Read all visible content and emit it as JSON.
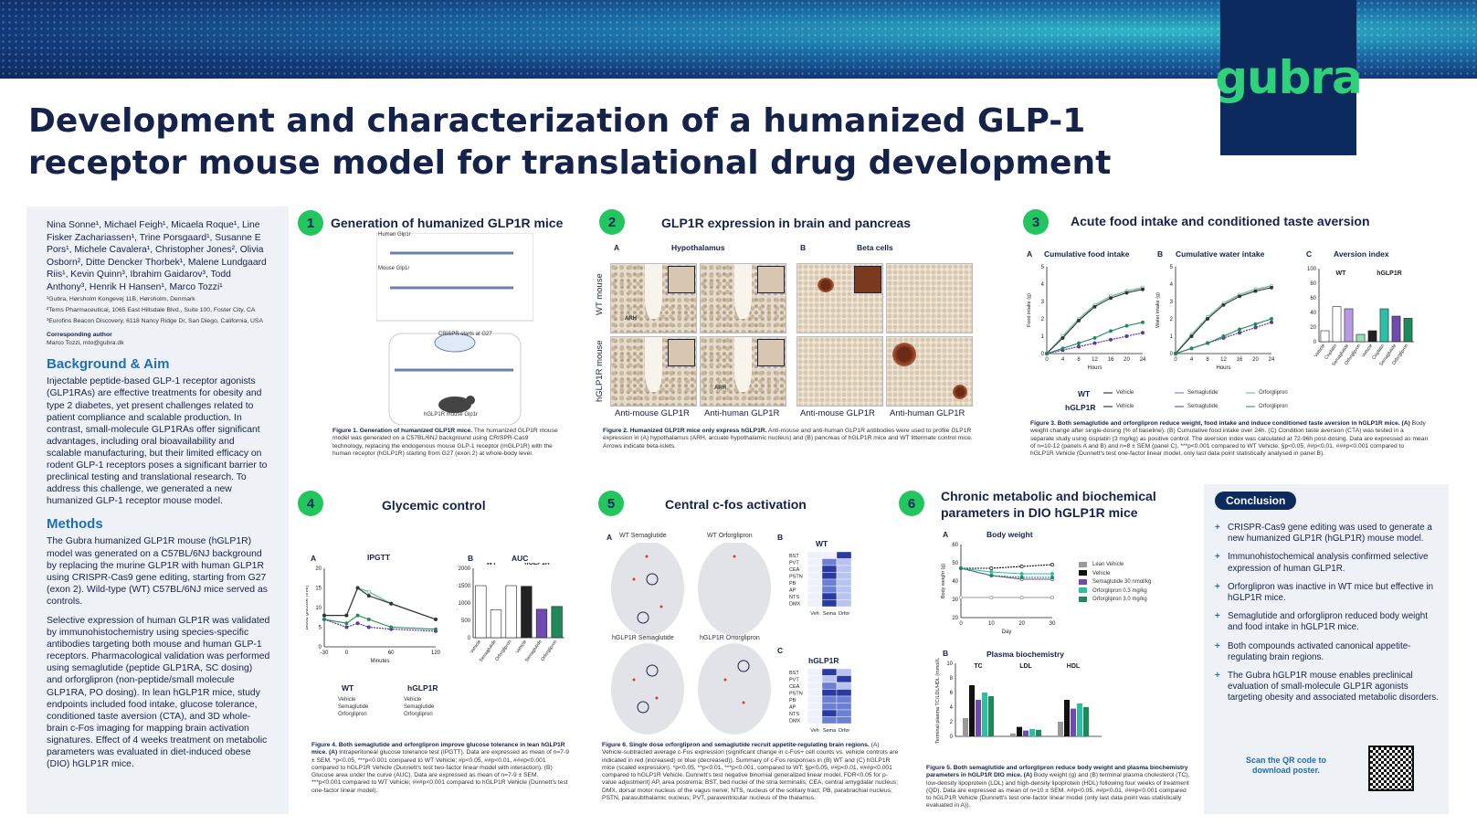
{
  "banner": {
    "logo": "gubra"
  },
  "title": "Development and characterization of a humanized GLP-1 receptor mouse model for translational drug development",
  "left": {
    "authors": "Nina Sonne¹, Michael Feigh¹, Micaela Roque¹, Line Fisker Zachariassen¹, Trine Porsgaard¹, Susanne E Pors¹, Michele Cavalera¹, Christopher Jones², Olivia Osborn², Ditte Dencker Thorbek¹, Malene Lundgaard Riis¹, Kevin Quinn³, Ibrahim Gaidarov³, Todd Anthony³, Henrik H Hansen¹, Marco Tozzi¹",
    "affil1": "¹Gubra, Hørsholm Kongevej 11B, Hørsholm, Denmark",
    "affil2": "²Terns Pharmaceutical, 1065 East Hillsdale Blvd., Suite 100, Foster City, CA",
    "affil3": "³Eurofins Beacon Discovery, 6118 Nancy Ridge Dr, San Diego, California, USA",
    "corr_label": "Corresponding author",
    "corr_value": "Marco Tozzi, mto@gubra.dk",
    "bg_heading": "Background & Aim",
    "bg_text": "Injectable peptide-based GLP-1 receptor agonists (GLP1RAs) are effective treatments for obesity and type 2 diabetes, yet present challenges related to patient compliance and scalable production. In contrast, small-molecule GLP1RAs offer significant advantages, including oral bioavailability and scalable manufacturing, but their limited efficacy on rodent GLP-1 receptors poses a significant barrier to preclinical testing and translational research. To address this challenge, we generated a new humanized GLP-1 receptor mouse model.",
    "methods_heading": "Methods",
    "methods_p1": "The Gubra humanized GLP1R mouse (hGLP1R) model was generated on a C57BL/6NJ background by replacing the murine GLP1R with human GLP1R using CRISPR-Cas9 gene editing, starting from G27 (exon 2). Wild-type (WT) C57BL/6NJ mice served as controls.",
    "methods_p2": "Selective expression of human GLP1R was validated by immunohistochemistry using species-specific antibodies targeting both mouse and human GLP-1 receptors. Pharmacological validation was performed using semaglutide (peptide GLP1RA, SC dosing) and orforglipron (non-peptide/small molecule GLP1RA, PO dosing). In lean hGLP1R mice, study endpoints included food intake, glucose tolerance, conditioned taste aversion (CTA), and 3D whole-brain c-Fos imaging for mapping brain activation signatures. Effect of 4 weeks treatment on metabolic parameters was evaluated in diet-induced obese (DIO) hGLP1R mice."
  },
  "p1": {
    "num": "1",
    "heading": "Generation of humanized GLP1R mice",
    "human": "Human Glp1r",
    "mouse": "Mouse Glp1r",
    "crispr": "CRISPR starts at G27",
    "hmouse": "hGLP1R mouse Glp1r",
    "cap_b": "Figure 1. Generation of humanized GLP1R mice.",
    "cap": " The humanized GLP1R mouse model was generated on a C57BL/6NJ background using CRISPR-Cas9 technology, replacing the endogenous mouse GLP-1 receptor (mGLP1R) with the human receptor (hGLP1R) starting from G27 (exon 2) at whole-body level."
  },
  "p2": {
    "num": "2",
    "heading": "GLP1R expression in brain and pancreas",
    "a": "A",
    "hypo": "Hypothalamus",
    "b": "B",
    "beta": "Beta cells",
    "wt": "WT mouse",
    "hg": "hGLP1R mouse",
    "arh": "ARH",
    "ab1": "Anti-mouse GLP1R",
    "ab2": "Anti-human GLP1R",
    "ab3": "Anti-mouse GLP1R",
    "ab4": "Anti-human GLP1R",
    "cap_b": "Figure 2. Humanized GLP1R mice only express hGLP1R.",
    "cap": " Anti-mouse and anti-human GLP1R antibodies were used to profile GLP1R expression in (A) hypothalamus (ARH, arcuate hypothalamic nucleus) and (B) pancreas of hGLP1R mice and WT littermate control mice. Arrows indicate beta-islets."
  },
  "p3": {
    "num": "3",
    "heading": "Acute food intake and conditioned taste aversion",
    "a": "A",
    "a_t": "Cumulative food intake",
    "b": "B",
    "b_t": "Cumulative water intake",
    "c": "C",
    "c_t": "Aversion index",
    "ya": "Food intake (g)",
    "yb": "Water intake (g)",
    "yc": "Aversion index (water intake/total fluid intake, %)",
    "x": "Hours",
    "wt": "WT",
    "hg": "hGLP1R",
    "veh": "Vehicle",
    "sema": "Semaglutide",
    "orfo": "Orforglipron",
    "cap_b": "Figure 3. Both semaglutide and orforglipron reduce weight, food intake and induce conditioned taste aversion in hGLP1R mice. (A)",
    "cap": " Body weight change after single-dosing (% of baseline). (B) Cumulative food intake over 24h. (C) Condition taste aversion (CTA) was tested in a separate study using cisplatin (3 mg/kg) as positive control. The aversion index was calculated at 72-96h post-dosing. Data are expressed as mean of n=10-12 (panels A and B) and n=8 ± SEM (panel C). ***p<0.001 compared to WT Vehicle; §p<0.05, ##p<0.01, ###p<0.001 compared to hGLP1R Vehicle (Dunnett's test one-factor linear model, only last data point statistically analysed in panel B)."
  },
  "p4": {
    "num": "4",
    "heading": "Glycemic control",
    "a": "A",
    "a_t": "IPGTT",
    "b": "B",
    "b_t": "AUC",
    "y": "Blood glucose (mM)",
    "x": "Minutes",
    "yauc": "AUC (mM x time)",
    "wt": "WT",
    "hg": "hGLP1R",
    "veh": "Vehicle",
    "sema": "Semaglutide",
    "orfo": "Orforglipron",
    "cap_b": "Figure 4. Both semaglutide and orforglipron improve glucose tolerance in lean hGLP1R mice. (A)",
    "cap": " Intraperitoneal glucose tolerance test (IPGTT). Data are expressed as mean of n=7-9 ± SEM. *p<0.05, ***p<0.001 compared to WT Vehicle; #p<0.05, ##p<0.01, ###p<0.001 compared to hGLP1R Vehicle (Dunnett's test two-factor linear model with interaction). (B) Glucose area under the curve (AUC). Data are expressed as mean of n=7-9 ± SEM. ***p<0.001 compared to WT Vehicle; ###p<0.001 compared to hGLP1R Vehicle (Dunnett's test one-factor linear model)."
  },
  "p5": {
    "num": "5",
    "heading": "Central c-fos activation",
    "a": "A",
    "b": "B",
    "c": "C",
    "wt_sema": "WT Semaglutide",
    "wt_orfo": "WT Orforglipron",
    "hg_sema": "hGLP1R Semaglutide",
    "hg_orfo": "hGLP1R Orforglipron",
    "wt": "WT",
    "hg": "hGLP1R",
    "regions": [
      "BST",
      "PVT",
      "CEA",
      "PSTN",
      "PB",
      "AP",
      "NTS",
      "DMX"
    ],
    "cols": [
      "Veh",
      "Sema",
      "Orfor"
    ],
    "cap_b": "Figure 6. Single dose orforglipron and semaglutide recruit appetite-regulating brain regions.",
    "cap": " (A) Vehicle-subtracted average c-Fos expression (significant change in c-Fos+ cell counts vs. vehicle controls are indicated in red (increased) or blue (decreased)). Summary of c-Fos responses in (B) WT and (C) hGLP1R mice (scaled expression). *p<0.05, **p<0.01, ***p<0.001, compared to WT; §p<0.05, ##p<0.01, ###p<0.001 compared to hGLP1R Vehicle. Dunnett's test negative binomial generalized linear model, FDR<0.05 for p-value adjustment) AP, area postrema; BST, bed nuclei of the stria terminalis; CEA, central amygdalar nucleus; DMX, dorsal motor nucleus of the vagus nerve; NTS, nucleus of the solitary tract; PB, parabrachial nucleus; PSTN, parasubthalamic nucleus; PVT, paraventricular nucleus of the thalamus."
  },
  "p6": {
    "num": "6",
    "heading1": "Chronic metabolic and biochemical",
    "heading2": "parameters in DIO hGLP1R mice",
    "a": "A",
    "a_t": "Body weight",
    "b": "B",
    "b_t": "Plasma biochemistry",
    "ya": "Body weight (g)",
    "xa": "Day",
    "yb": "Terminal plasma TC/LDL/HDL (mmol/L)",
    "legend": [
      "Lean Vehicle",
      "Vehicle",
      "Semaglutide 30 nmol/kg",
      "Orforglipron 0.3 mg/kg",
      "Orforglipron 3.0 mg/kg"
    ],
    "groups": [
      "TC",
      "LDL",
      "HDL"
    ],
    "cap_b": "Figure 5. Both semaglutide and orforglipron reduce body weight and plasma biochemistry parameters in hGLP1R DIO mice. (A)",
    "cap": " Body weight (g) and (B) terminal plasma cholesterol (TC), low-density lipoprotein (LDL) and high-density lipoprotein (HDL) following four weeks of treatment (QD). Data are expressed as mean of n=10 ± SEM. ##p<0.05, ##p<0.01, ###p<0.001 compared to hGLP1R Vehicle (Dunnett's test one-factor linear model (only last data point was statistically evaluated in A))."
  },
  "conclusion": {
    "heading": "Conclusion",
    "items": [
      "CRISPR-Cas9 gene editing was used to generate a new humanized GLP1R (hGLP1R) mouse model.",
      "Immunohistochemical analysis confirmed selective expression of human GLP1R.",
      "Orforglipron was inactive in WT mice but effective in hGLP1R mice.",
      "Semaglutide and orforglipron reduced body weight and food intake in hGLP1R mice.",
      "Both compounds activated canonical appetite-regulating brain regions.",
      "The Gubra hGLP1R mouse enables preclinical evaluation of small-molecule GLP1R agonists targeting obesity and associated metabolic disorders."
    ],
    "qr_text": "Scan the QR code to download poster."
  },
  "chart_data": [
    {
      "type": "line",
      "title": "Cumulative food intake",
      "xlabel": "Hours",
      "ylabel": "Food intake (g)",
      "xlim": [
        0,
        24
      ],
      "ylim": [
        0,
        5
      ],
      "x": [
        0,
        4,
        8,
        12,
        16,
        20,
        24
      ],
      "series": [
        {
          "name": "WT Vehicle",
          "values": [
            0,
            1.0,
            2.0,
            2.8,
            3.3,
            3.6,
            3.8
          ]
        },
        {
          "name": "WT Semaglutide",
          "values": [
            0,
            0.2,
            0.4,
            0.6,
            0.8,
            1.0,
            1.2
          ]
        },
        {
          "name": "WT Orforglipron",
          "values": [
            0,
            1.0,
            2.0,
            2.8,
            3.3,
            3.6,
            3.8
          ]
        },
        {
          "name": "hGLP1R Vehicle",
          "values": [
            0,
            0.9,
            1.9,
            2.7,
            3.2,
            3.5,
            3.7
          ]
        },
        {
          "name": "hGLP1R Semaglutide",
          "values": [
            0,
            0.2,
            0.4,
            0.6,
            0.8,
            1.0,
            1.2
          ]
        },
        {
          "name": "hGLP1R Orforglipron",
          "values": [
            0,
            0.3,
            0.6,
            0.9,
            1.3,
            1.6,
            1.8
          ]
        }
      ]
    },
    {
      "type": "line",
      "title": "Cumulative water intake",
      "xlabel": "Hours",
      "ylabel": "Water intake (g)",
      "xlim": [
        0,
        24
      ],
      "ylim": [
        0,
        5
      ],
      "x": [
        0,
        4,
        8,
        12,
        16,
        20,
        24
      ],
      "series": [
        {
          "name": "WT Vehicle",
          "values": [
            0,
            1.1,
            2.1,
            2.9,
            3.4,
            3.7,
            3.9
          ]
        },
        {
          "name": "WT Semaglutide",
          "values": [
            0,
            0.3,
            0.6,
            0.9,
            1.2,
            1.5,
            1.8
          ]
        },
        {
          "name": "WT Orforglipron",
          "values": [
            0,
            1.1,
            2.1,
            2.9,
            3.4,
            3.7,
            3.9
          ]
        },
        {
          "name": "hGLP1R Vehicle",
          "values": [
            0,
            1.0,
            2.0,
            2.8,
            3.3,
            3.6,
            3.8
          ]
        },
        {
          "name": "hGLP1R Semaglutide",
          "values": [
            0,
            0.3,
            0.6,
            0.9,
            1.2,
            1.5,
            1.8
          ]
        },
        {
          "name": "hGLP1R Orforglipron",
          "values": [
            0,
            0.3,
            0.6,
            1.0,
            1.4,
            1.7,
            2.0
          ]
        }
      ]
    },
    {
      "type": "bar",
      "title": "Aversion index",
      "ylim": [
        0,
        100
      ],
      "categories": [
        "Vehicle",
        "Cisplatin",
        "Semaglutide",
        "Orforglipron",
        "Vehicle",
        "Cisplatin",
        "Semaglutide",
        "Orforglipron"
      ],
      "values": [
        15,
        48,
        45,
        10,
        15,
        45,
        35,
        32
      ]
    },
    {
      "type": "line",
      "title": "IPGTT",
      "xlabel": "Minutes",
      "ylabel": "Blood glucose (mM)",
      "xlim": [
        -30,
        120
      ],
      "ylim": [
        0,
        20
      ],
      "x": [
        -30,
        0,
        15,
        30,
        60,
        120
      ],
      "series": [
        {
          "name": "WT Vehicle",
          "values": [
            8,
            8,
            15,
            14,
            11,
            7
          ]
        },
        {
          "name": "WT Semaglutide",
          "values": [
            7,
            5,
            6,
            5,
            4.5,
            4
          ]
        },
        {
          "name": "WT Orforglipron",
          "values": [
            8,
            8,
            15,
            14,
            11,
            7
          ]
        },
        {
          "name": "hGLP1R Vehicle",
          "values": [
            8,
            8,
            15,
            13,
            11,
            7
          ]
        },
        {
          "name": "hGLP1R Semaglutide",
          "values": [
            7,
            5,
            6,
            5,
            4.5,
            4
          ]
        },
        {
          "name": "hGLP1R Orforglipron",
          "values": [
            7,
            6,
            8,
            7,
            5,
            4.5
          ]
        }
      ]
    },
    {
      "type": "bar",
      "title": "AUC",
      "ylabel": "AUC (mM x time)",
      "ylim": [
        0,
        2000
      ],
      "categories": [
        "Vehicle",
        "Semaglutide",
        "Orforglipron",
        "Vehicle",
        "Semaglutide",
        "Orforglipron"
      ],
      "values": [
        1500,
        800,
        1500,
        1480,
        820,
        900
      ]
    },
    {
      "type": "line",
      "title": "Body weight",
      "xlabel": "Day",
      "ylabel": "Body weight (g)",
      "xlim": [
        0,
        30
      ],
      "ylim": [
        20,
        60
      ],
      "x": [
        0,
        10,
        20,
        30
      ],
      "series": [
        {
          "name": "Lean Vehicle",
          "values": [
            31,
            31,
            31,
            31
          ]
        },
        {
          "name": "Vehicle",
          "values": [
            47,
            47,
            48,
            49
          ]
        },
        {
          "name": "Semaglutide 30 nmol/kg",
          "values": [
            47,
            43,
            41,
            41
          ]
        },
        {
          "name": "Orforglipron 0.3 mg/kg",
          "values": [
            47,
            45,
            44,
            44
          ]
        },
        {
          "name": "Orforglipron 3.0 mg/kg",
          "values": [
            47,
            43,
            42,
            42
          ]
        }
      ]
    },
    {
      "type": "bar",
      "title": "Plasma biochemistry",
      "ylabel": "Terminal plasma TC/LDL/HDL (mmol/L)",
      "ylim": [
        0,
        10
      ],
      "categories": [
        "TC",
        "LDL",
        "HDL"
      ],
      "series": [
        {
          "name": "Lean Vehicle",
          "values": [
            2.5,
            0.4,
            2.0
          ]
        },
        {
          "name": "Vehicle",
          "values": [
            7.0,
            1.3,
            5.0
          ]
        },
        {
          "name": "Semaglutide 30 nmol/kg",
          "values": [
            5.0,
            0.8,
            3.8
          ]
        },
        {
          "name": "Orforglipron 0.3 mg/kg",
          "values": [
            6.0,
            1.0,
            4.5
          ]
        },
        {
          "name": "Orforglipron 3.0 mg/kg",
          "values": [
            5.5,
            0.9,
            4.0
          ]
        }
      ]
    }
  ]
}
